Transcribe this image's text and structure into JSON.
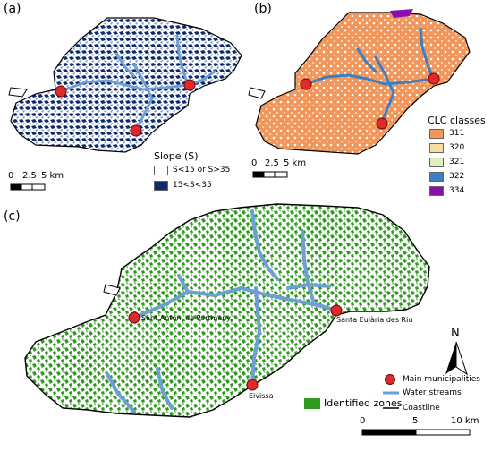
{
  "panels": {
    "a": {
      "label": "(a)",
      "legend_title": "Slope (S)",
      "legend_items": [
        {
          "label": "S<15 or S>35",
          "color": "#ffffff"
        },
        {
          "label": "15<S<35",
          "color": "#0d2a6b"
        }
      ],
      "scale": {
        "t0": "0",
        "t1": "2.5",
        "t2": "5 km"
      }
    },
    "b": {
      "label": "(b)",
      "legend_title": "CLC classes",
      "legend_items": [
        {
          "label": "311",
          "color": "#f2975b"
        },
        {
          "label": "320",
          "color": "#f9dda0"
        },
        {
          "label": "321",
          "color": "#dff0c0"
        },
        {
          "label": "322",
          "color": "#3d7fc2"
        },
        {
          "label": "334",
          "color": "#8a0fb0"
        }
      ],
      "scale": {
        "t0": "0",
        "t1": "2.5",
        "t2": "5 km"
      }
    },
    "c": {
      "label": "(c)",
      "towns": {
        "sant_antoni": "Sant Antoni de Portmany",
        "santa_eularia": "Santa Eulària des Riu",
        "eivissa": "Eivissa"
      },
      "legend": {
        "identified": "Identified zones",
        "municipalities": "Main municipalities",
        "streams": "Water streams",
        "coastline": "Coastline"
      },
      "north": "N",
      "scale": {
        "t0": "0",
        "t1": "5",
        "t2": "10 km"
      }
    }
  },
  "colors": {
    "slope_dark": "#0d2a6b",
    "slope_light": "#7e95c8",
    "clc_orange": "#f2975b",
    "clc_blue": "#3d7fc2",
    "green_zone": "#2e9b1e",
    "stream": "#6b9fd6",
    "municipality": "#dd2a2a"
  }
}
